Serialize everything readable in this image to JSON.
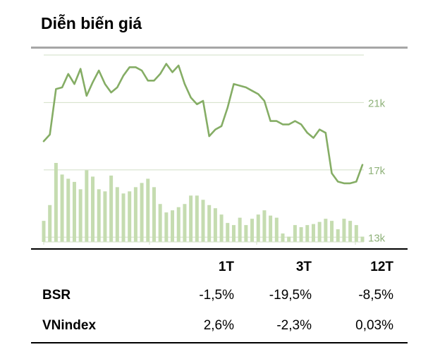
{
  "title": "Diễn biến giá",
  "colors": {
    "line": "#85ad65",
    "bar": "#c5dcb0",
    "grid": "#d2dfc6",
    "axis_text": "#8fb27a"
  },
  "chart_data": {
    "type": "line",
    "y_ticks": [
      {
        "value": 13,
        "label": "13k"
      },
      {
        "value": 17,
        "label": "17k"
      },
      {
        "value": 21,
        "label": "21k"
      }
    ],
    "ylim": [
      12.3,
      24.2
    ],
    "price": [
      18.7,
      19.1,
      21.8,
      21.9,
      22.7,
      22.1,
      23.0,
      21.4,
      22.2,
      22.9,
      22.1,
      21.6,
      21.9,
      22.6,
      23.1,
      23.1,
      22.9,
      22.3,
      22.3,
      22.7,
      23.3,
      22.8,
      23.2,
      22.1,
      21.3,
      20.9,
      21.1,
      19.0,
      19.4,
      19.6,
      20.7,
      22.1,
      22.0,
      21.9,
      21.7,
      21.5,
      21.1,
      19.9,
      19.9,
      19.7,
      19.7,
      19.9,
      19.7,
      19.2,
      18.9,
      19.4,
      19.2,
      16.8,
      16.3,
      16.2,
      16.2,
      16.3,
      17.3
    ],
    "volume": [
      0.2,
      0.35,
      0.75,
      0.64,
      0.6,
      0.57,
      0.5,
      0.68,
      0.62,
      0.5,
      0.48,
      0.63,
      0.52,
      0.46,
      0.48,
      0.52,
      0.56,
      0.6,
      0.52,
      0.36,
      0.28,
      0.3,
      0.33,
      0.36,
      0.44,
      0.44,
      0.4,
      0.35,
      0.32,
      0.26,
      0.18,
      0.16,
      0.23,
      0.16,
      0.22,
      0.26,
      0.3,
      0.25,
      0.23,
      0.08,
      0.05,
      0.16,
      0.14,
      0.16,
      0.17,
      0.19,
      0.22,
      0.2,
      0.12,
      0.22,
      0.2,
      0.16,
      0.05
    ]
  },
  "table": {
    "headers": [
      "1T",
      "3T",
      "12T"
    ],
    "rows": [
      {
        "label": "BSR",
        "values": [
          "-1,5%",
          "-19,5%",
          "-8,5%"
        ]
      },
      {
        "label": "VNindex",
        "values": [
          "2,6%",
          "-2,3%",
          "0,03%"
        ]
      }
    ]
  }
}
